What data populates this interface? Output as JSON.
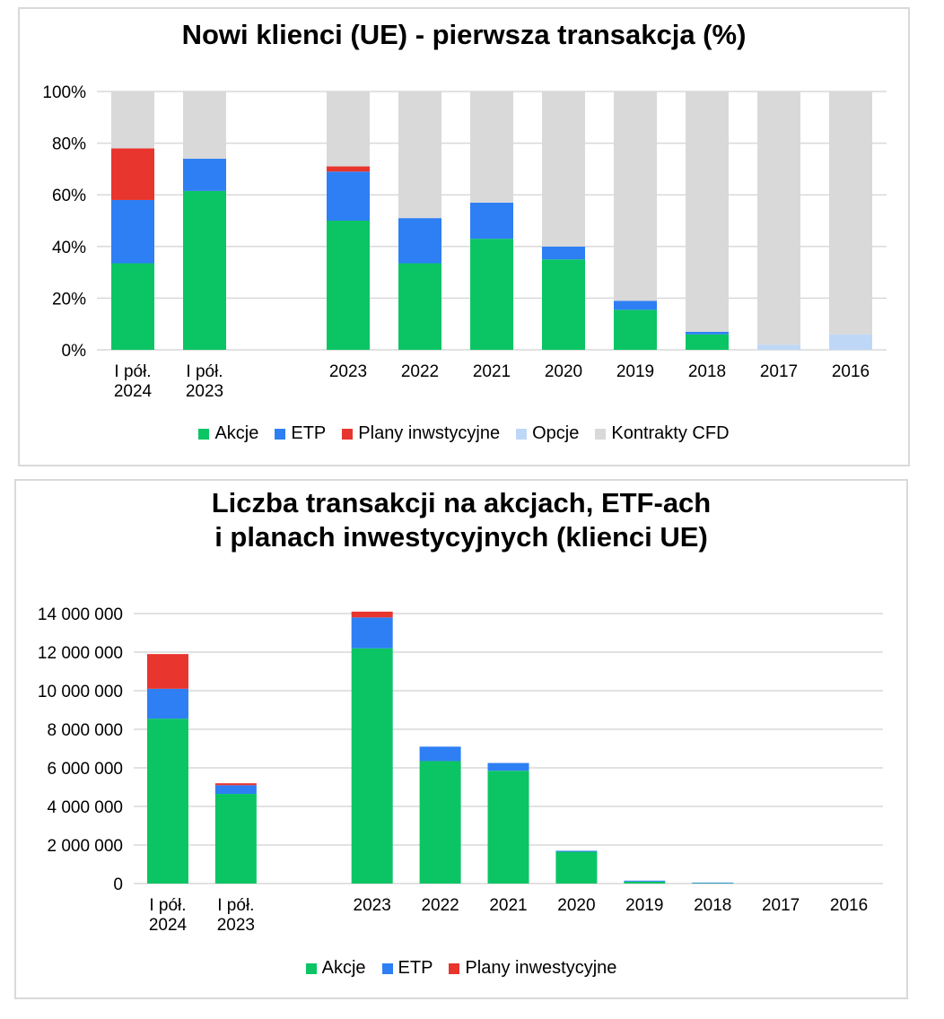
{
  "colors": {
    "akcje": "#0bc564",
    "etp": "#2e7ff4",
    "plany": "#e8352e",
    "opcje": "#bfd7f7",
    "cfd": "#d9d9d9",
    "grid": "#d9d9d9"
  },
  "chart_data": [
    {
      "type": "bar",
      "stacked": true,
      "title": "Nowi klienci (UE) - pierwsza transakcja (%)",
      "categories": [
        "I pół. 2024",
        "I pół. 2023",
        "",
        "2023",
        "2022",
        "2021",
        "2020",
        "2019",
        "2018",
        "2017",
        "2016"
      ],
      "category_lines": [
        [
          "I pół.",
          "2024"
        ],
        [
          "I pół.",
          "2023"
        ],
        [
          ""
        ],
        [
          "2023"
        ],
        [
          "2022"
        ],
        [
          "2021"
        ],
        [
          "2020"
        ],
        [
          "2019"
        ],
        [
          "2018"
        ],
        [
          "2017"
        ],
        [
          "2016"
        ]
      ],
      "ylim": [
        0,
        100
      ],
      "yticks": [
        0,
        20,
        40,
        60,
        80,
        100
      ],
      "ytick_labels": [
        "0%",
        "20%",
        "40%",
        "60%",
        "80%",
        "100%"
      ],
      "grid": true,
      "legend_position": "bottom",
      "series": [
        {
          "name": "Akcje",
          "color_key": "akcje",
          "values": [
            33.5,
            61.5,
            null,
            50,
            33.5,
            43,
            35,
            15.5,
            6,
            0,
            0
          ]
        },
        {
          "name": "ETP",
          "color_key": "etp",
          "values": [
            24.5,
            12.5,
            null,
            19,
            17.5,
            14,
            5,
            3.5,
            1,
            0,
            0
          ]
        },
        {
          "name": "Plany inwstycyjne",
          "color_key": "plany",
          "values": [
            20,
            0,
            null,
            2,
            0,
            0,
            0,
            0,
            0,
            0,
            0
          ]
        },
        {
          "name": "Opcje",
          "color_key": "opcje",
          "values": [
            0,
            0,
            null,
            0,
            0,
            0,
            0,
            0,
            0,
            2,
            6
          ]
        },
        {
          "name": "Kontrakty CFD",
          "color_key": "cfd",
          "values": [
            22,
            26,
            null,
            29,
            49,
            43,
            60,
            81,
            93,
            98,
            94
          ]
        }
      ]
    },
    {
      "type": "bar",
      "stacked": true,
      "title": "Liczba transakcji na akcjach, ETF-ach i planach inwestycyjnych (klienci UE)",
      "title_lines": [
        "Liczba transakcji na akcjach, ETF-ach",
        "i planach inwestycyjnych (klienci UE)"
      ],
      "categories": [
        "I pół. 2024",
        "I pół. 2023",
        "",
        "2023",
        "2022",
        "2021",
        "2020",
        "2019",
        "2018",
        "2017",
        "2016"
      ],
      "category_lines": [
        [
          "I pół.",
          "2024"
        ],
        [
          "I pół.",
          "2023"
        ],
        [
          ""
        ],
        [
          "2023"
        ],
        [
          "2022"
        ],
        [
          "2021"
        ],
        [
          "2020"
        ],
        [
          "2019"
        ],
        [
          "2018"
        ],
        [
          "2017"
        ],
        [
          "2016"
        ]
      ],
      "ylim": [
        0,
        14000000
      ],
      "yticks": [
        0,
        2000000,
        4000000,
        6000000,
        8000000,
        10000000,
        12000000,
        14000000
      ],
      "ytick_labels": [
        "0",
        "2 000 000",
        "4 000 000",
        "6 000 000",
        "8 000 000",
        "10 000 000",
        "12 000 000",
        "14 000 000"
      ],
      "grid": true,
      "legend_position": "bottom",
      "series": [
        {
          "name": "Akcje",
          "color_key": "akcje",
          "values": [
            8550000,
            4650000,
            null,
            12200000,
            6350000,
            5850000,
            1650000,
            100000,
            20000,
            0,
            0
          ]
        },
        {
          "name": "ETP",
          "color_key": "etp",
          "values": [
            1550000,
            450000,
            null,
            1600000,
            750000,
            400000,
            50000,
            50000,
            30000,
            0,
            0
          ]
        },
        {
          "name": "Plany inwestycyjne",
          "color_key": "plany",
          "values": [
            1800000,
            100000,
            null,
            300000,
            0,
            0,
            0,
            0,
            0,
            0,
            0
          ]
        }
      ]
    }
  ]
}
